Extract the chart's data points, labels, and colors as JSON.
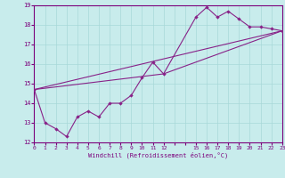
{
  "xlabel": "Windchill (Refroidissement éolien,°C)",
  "bg_color": "#c8ecec",
  "grid_color": "#a8d8d8",
  "line_color": "#882288",
  "xlim": [
    0,
    23
  ],
  "ylim": [
    12,
    19
  ],
  "xticks": [
    0,
    1,
    2,
    3,
    4,
    5,
    6,
    7,
    8,
    9,
    10,
    11,
    12,
    15,
    16,
    17,
    18,
    19,
    20,
    21,
    22,
    23
  ],
  "yticks": [
    12,
    13,
    14,
    15,
    16,
    17,
    18,
    19
  ],
  "series": [
    [
      0,
      14.7
    ],
    [
      1,
      13.0
    ],
    [
      2,
      12.7
    ],
    [
      3,
      12.3
    ],
    [
      4,
      13.3
    ],
    [
      5,
      13.6
    ],
    [
      6,
      13.3
    ],
    [
      7,
      14.0
    ],
    [
      8,
      14.0
    ],
    [
      9,
      14.4
    ],
    [
      10,
      15.3
    ],
    [
      11,
      16.1
    ],
    [
      12,
      15.5
    ],
    [
      15,
      18.4
    ],
    [
      16,
      18.9
    ],
    [
      17,
      18.4
    ],
    [
      18,
      18.7
    ],
    [
      19,
      18.3
    ],
    [
      20,
      17.9
    ],
    [
      21,
      17.9
    ],
    [
      22,
      17.8
    ],
    [
      23,
      17.7
    ]
  ],
  "line2_x": [
    0,
    23
  ],
  "line2_y": [
    14.7,
    17.7
  ],
  "line3_x": [
    0,
    12,
    23
  ],
  "line3_y": [
    14.7,
    15.5,
    17.7
  ]
}
